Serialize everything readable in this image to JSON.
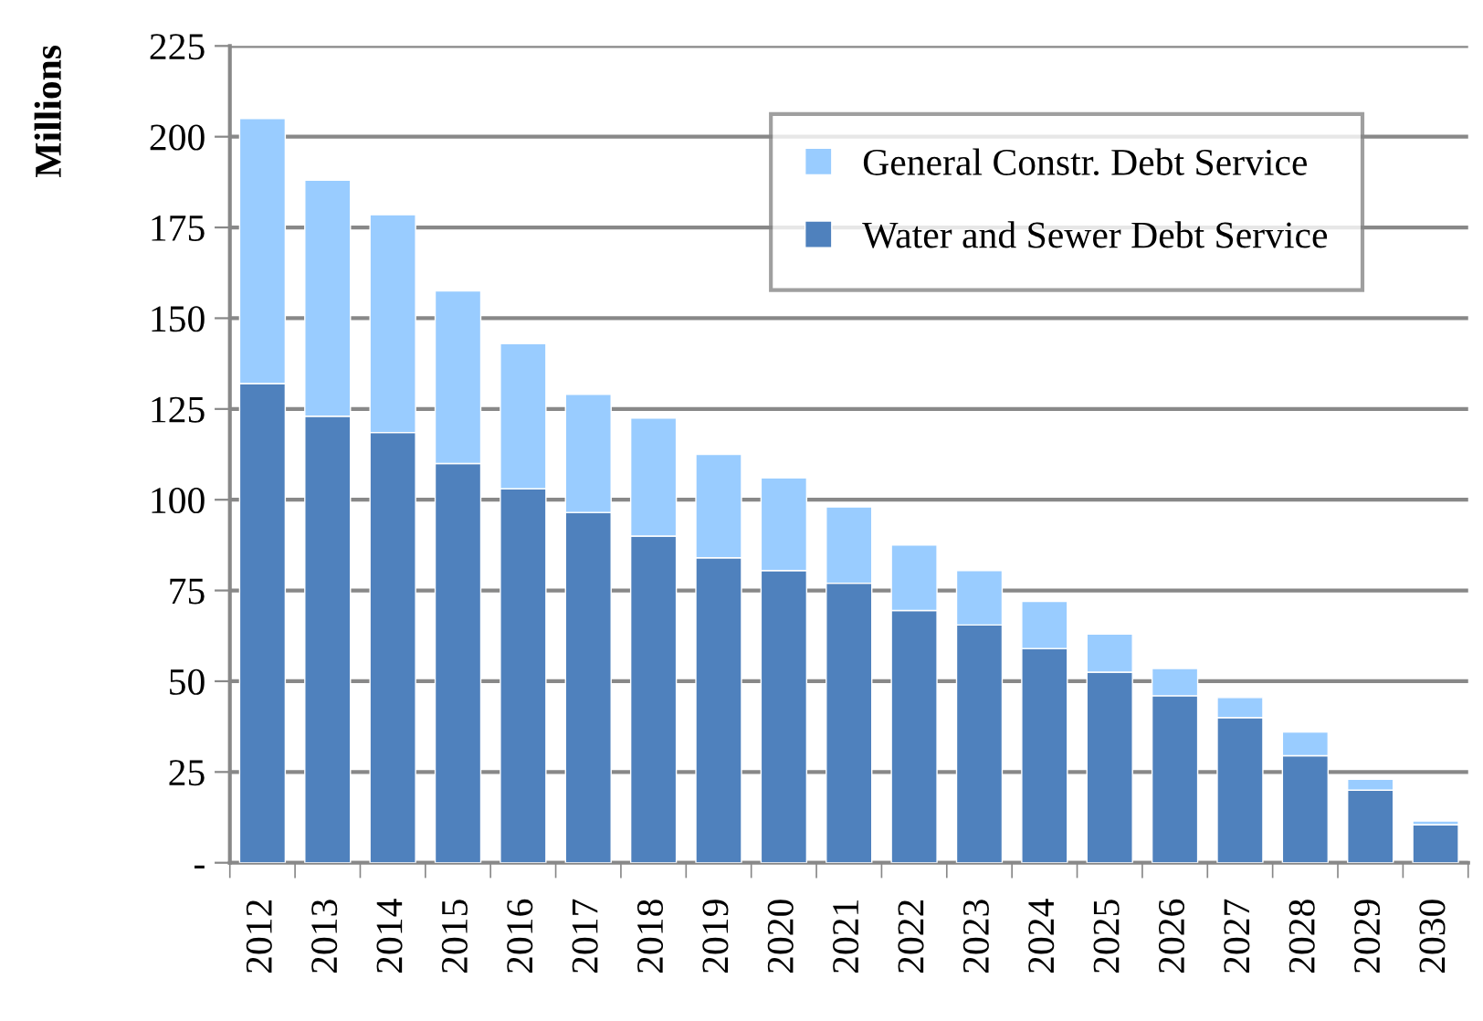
{
  "chart_data": {
    "type": "bar",
    "stacked": true,
    "ylabel": "Millions",
    "categories": [
      "2012",
      "2013",
      "2014",
      "2015",
      "2016",
      "2017",
      "2018",
      "2019",
      "2020",
      "2021",
      "2022",
      "2023",
      "2024",
      "2025",
      "2026",
      "2027",
      "2028",
      "2029",
      "2030"
    ],
    "series": [
      {
        "name": "Water and Sewer Debt Service",
        "color": "#4f81bd",
        "values": [
          132,
          123,
          118.5,
          110,
          103,
          96.5,
          90,
          84,
          80.5,
          77,
          69.5,
          65.5,
          59,
          52.5,
          46,
          40,
          29.5,
          20,
          10.5
        ]
      },
      {
        "name": "General Constr. Debt Service",
        "color": "#99ccff",
        "values": [
          73,
          65,
          60,
          47.5,
          40,
          32.5,
          32.5,
          28.5,
          25.5,
          21,
          18,
          15,
          13,
          10.5,
          7.5,
          5.5,
          6.5,
          3,
          1
        ]
      }
    ],
    "ylim": [
      0,
      225
    ],
    "yticks": [
      {
        "value": 0,
        "label": "-"
      },
      25,
      50,
      75,
      100,
      125,
      150,
      175,
      200,
      225
    ],
    "grid": "y",
    "legend": "top right"
  }
}
